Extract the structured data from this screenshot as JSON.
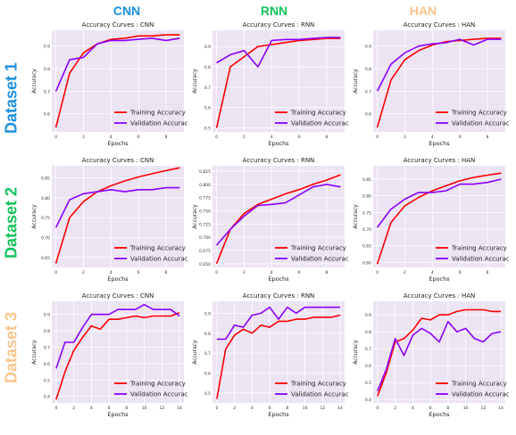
{
  "colors": {
    "plot_bg": "#ece3f3",
    "grid": "#ffffff",
    "training": "#ff0000",
    "validation": "#8a00ff",
    "cnn_header": "#1a8fe0",
    "rnn_header": "#13c25a",
    "han_header": "#f8c48c",
    "dataset1": "#1a8fe0",
    "dataset2": "#13c25a",
    "dataset3": "#f8c48c"
  },
  "columns": [
    {
      "label": "CNN",
      "color": "#1a8fe0"
    },
    {
      "label": "RNN",
      "color": "#13c25a"
    },
    {
      "label": "HAN",
      "color": "#f8c48c"
    }
  ],
  "rows": [
    {
      "label": "Dataset 1",
      "color": "#1a8fe0"
    },
    {
      "label": "Dataset 2",
      "color": "#13c25a"
    },
    {
      "label": "Dataset 3",
      "color": "#f8c48c"
    }
  ],
  "chart_data": [
    {
      "type": "line",
      "title": "Accuracy Curves : CNN",
      "xlabel": "Epochs",
      "ylabel": "Accuracy",
      "grid": true,
      "legend": "bottom-right",
      "xlim": [
        -0.3,
        9.3
      ],
      "xticks": [
        0,
        2,
        4,
        6,
        8
      ],
      "ylim": [
        0.52,
        0.97
      ],
      "yticks": [
        0.6,
        0.7,
        0.8,
        0.9
      ],
      "ytick_labels": [
        "0.6",
        "0.7",
        "0.8",
        "0.9"
      ],
      "x": [
        0,
        1,
        2,
        3,
        4,
        5,
        6,
        7,
        8,
        9
      ],
      "series": [
        {
          "name": "Training Accuracy",
          "color": "#ff0000",
          "values": [
            0.54,
            0.78,
            0.87,
            0.91,
            0.93,
            0.935,
            0.945,
            0.945,
            0.95,
            0.95
          ]
        },
        {
          "name": "Validation Accuracy",
          "color": "#8a00ff",
          "values": [
            0.7,
            0.84,
            0.85,
            0.91,
            0.925,
            0.925,
            0.93,
            0.935,
            0.925,
            0.935
          ]
        }
      ]
    },
    {
      "type": "line",
      "title": "Accuracy Curves : RNN",
      "xlabel": "Epochs",
      "ylabel": "Accuracy",
      "grid": true,
      "legend": "bottom-right",
      "xlim": [
        -0.3,
        9.3
      ],
      "xticks": [
        0,
        2,
        4,
        6,
        8
      ],
      "ylim": [
        0.48,
        0.98
      ],
      "yticks": [
        0.5,
        0.6,
        0.7,
        0.8,
        0.9
      ],
      "ytick_labels": [
        "0.5",
        "0.6",
        "0.7",
        "0.8",
        "0.9"
      ],
      "x": [
        0,
        1,
        2,
        3,
        4,
        5,
        6,
        7,
        8,
        9
      ],
      "series": [
        {
          "name": "Training Accuracy",
          "color": "#ff0000",
          "values": [
            0.5,
            0.8,
            0.85,
            0.9,
            0.91,
            0.92,
            0.93,
            0.935,
            0.94,
            0.94
          ]
        },
        {
          "name": "Validation Accuracy",
          "color": "#8a00ff",
          "values": [
            0.82,
            0.86,
            0.88,
            0.8,
            0.93,
            0.935,
            0.935,
            0.94,
            0.945,
            0.945
          ]
        }
      ]
    },
    {
      "type": "line",
      "title": "Accuracy Curves : HAN",
      "xlabel": "Epochs",
      "ylabel": "Accuracy",
      "grid": true,
      "legend": "bottom-right",
      "xlim": [
        -0.3,
        9.3
      ],
      "xticks": [
        0,
        2,
        4,
        6,
        8
      ],
      "ylim": [
        0.52,
        0.97
      ],
      "yticks": [
        0.6,
        0.7,
        0.8,
        0.9
      ],
      "ytick_labels": [
        "0.6",
        "0.7",
        "0.8",
        "0.9"
      ],
      "x": [
        0,
        1,
        2,
        3,
        4,
        5,
        6,
        7,
        8,
        9
      ],
      "series": [
        {
          "name": "Training Accuracy",
          "color": "#ff0000",
          "values": [
            0.54,
            0.75,
            0.84,
            0.88,
            0.905,
            0.92,
            0.925,
            0.93,
            0.935,
            0.935
          ]
        },
        {
          "name": "Validation Accuracy",
          "color": "#8a00ff",
          "values": [
            0.7,
            0.82,
            0.87,
            0.9,
            0.91,
            0.915,
            0.93,
            0.905,
            0.93,
            0.93
          ]
        }
      ]
    },
    {
      "type": "line",
      "title": "Accuracy Curves : CNN",
      "xlabel": "Epochs",
      "ylabel": "Accuracy",
      "grid": true,
      "legend": "bottom-right",
      "xlim": [
        -0.3,
        9.3
      ],
      "xticks": [
        0,
        2,
        4,
        6,
        8
      ],
      "ylim": [
        0.625,
        0.88
      ],
      "yticks": [
        0.65,
        0.7,
        0.75,
        0.8,
        0.85
      ],
      "ytick_labels": [
        "0.65",
        "0.70",
        "0.75",
        "0.80",
        "0.85"
      ],
      "x": [
        0,
        1,
        2,
        3,
        4,
        5,
        6,
        7,
        8,
        9
      ],
      "series": [
        {
          "name": "Training Accuracy",
          "color": "#ff0000",
          "values": [
            0.635,
            0.75,
            0.79,
            0.815,
            0.83,
            0.842,
            0.852,
            0.86,
            0.868,
            0.875
          ]
        },
        {
          "name": "Validation Accuracy",
          "color": "#8a00ff",
          "values": [
            0.725,
            0.795,
            0.81,
            0.815,
            0.82,
            0.815,
            0.82,
            0.82,
            0.825,
            0.825
          ]
        }
      ]
    },
    {
      "type": "line",
      "title": "Accuracy Curves : RNN",
      "xlabel": "Epochs",
      "ylabel": "Accuracy",
      "grid": true,
      "legend": "bottom-right",
      "xlim": [
        -0.3,
        9.3
      ],
      "xticks": [
        0,
        2,
        4,
        6,
        8
      ],
      "ylim": [
        0.643,
        0.835
      ],
      "yticks": [
        0.65,
        0.675,
        0.7,
        0.725,
        0.75,
        0.775,
        0.8,
        0.825
      ],
      "ytick_labels": [
        "0.650",
        "0.675",
        "0.700",
        "0.725",
        "0.750",
        "0.775",
        "0.800",
        "0.825"
      ],
      "x": [
        0,
        1,
        2,
        3,
        4,
        5,
        6,
        7,
        8,
        9
      ],
      "series": [
        {
          "name": "Training Accuracy",
          "color": "#ff0000",
          "values": [
            0.65,
            0.715,
            0.745,
            0.762,
            0.772,
            0.782,
            0.79,
            0.8,
            0.808,
            0.818
          ]
        },
        {
          "name": "Validation Accuracy",
          "color": "#8a00ff",
          "values": [
            0.685,
            0.715,
            0.74,
            0.76,
            0.762,
            0.765,
            0.78,
            0.795,
            0.8,
            0.795
          ]
        }
      ]
    },
    {
      "type": "line",
      "title": "Accuracy Curves : HAN",
      "xlabel": "Epochs",
      "ylabel": "Accuracy",
      "grid": true,
      "legend": "bottom-right",
      "xlim": [
        -0.3,
        9.3
      ],
      "xticks": [
        0,
        2,
        4,
        6,
        8
      ],
      "ylim": [
        0.585,
        0.89
      ],
      "yticks": [
        0.6,
        0.65,
        0.7,
        0.75,
        0.8,
        0.85
      ],
      "ytick_labels": [
        "0.60",
        "0.65",
        "0.70",
        "0.75",
        "0.80",
        "0.85"
      ],
      "x": [
        0,
        1,
        2,
        3,
        4,
        5,
        6,
        7,
        8,
        9
      ],
      "series": [
        {
          "name": "Training Accuracy",
          "color": "#ff0000",
          "values": [
            0.595,
            0.72,
            0.77,
            0.795,
            0.815,
            0.83,
            0.845,
            0.855,
            0.862,
            0.868
          ]
        },
        {
          "name": "Validation Accuracy",
          "color": "#8a00ff",
          "values": [
            0.705,
            0.76,
            0.79,
            0.81,
            0.81,
            0.815,
            0.835,
            0.835,
            0.84,
            0.85
          ]
        }
      ]
    },
    {
      "type": "line",
      "title": "Accuracy Curves : CNN",
      "xlabel": "Epochs",
      "ylabel": "Accuracy",
      "grid": true,
      "legend": "bottom-right",
      "xlim": [
        -0.5,
        14.5
      ],
      "xticks": [
        0,
        2,
        4,
        6,
        8,
        10,
        12,
        14
      ],
      "ylim": [
        0.36,
        0.98
      ],
      "yticks": [
        0.4,
        0.5,
        0.6,
        0.7,
        0.8,
        0.9
      ],
      "ytick_labels": [
        "0.4",
        "0.5",
        "0.6",
        "0.7",
        "0.8",
        "0.9"
      ],
      "x": [
        0,
        1,
        2,
        3,
        4,
        5,
        6,
        7,
        8,
        9,
        10,
        11,
        12,
        13,
        14
      ],
      "series": [
        {
          "name": "Training Accuracy",
          "color": "#ff0000",
          "values": [
            0.38,
            0.55,
            0.68,
            0.76,
            0.83,
            0.81,
            0.87,
            0.87,
            0.88,
            0.89,
            0.88,
            0.89,
            0.89,
            0.89,
            0.91
          ]
        },
        {
          "name": "Validation Accuracy",
          "color": "#8a00ff",
          "values": [
            0.57,
            0.73,
            0.73,
            0.82,
            0.9,
            0.9,
            0.9,
            0.93,
            0.93,
            0.93,
            0.96,
            0.93,
            0.93,
            0.93,
            0.89
          ]
        }
      ]
    },
    {
      "type": "line",
      "title": "Accuracy Curves : RNN",
      "xlabel": "Epochs",
      "ylabel": "Accuracy",
      "grid": true,
      "legend": "bottom-right",
      "xlim": [
        -0.5,
        14.5
      ],
      "xticks": [
        0,
        2,
        4,
        6,
        8,
        10,
        12,
        14
      ],
      "ylim": [
        0.45,
        0.96
      ],
      "yticks": [
        0.5,
        0.6,
        0.7,
        0.8,
        0.9
      ],
      "ytick_labels": [
        "0.5",
        "0.6",
        "0.7",
        "0.8",
        "0.9"
      ],
      "x": [
        0,
        1,
        2,
        3,
        4,
        5,
        6,
        7,
        8,
        9,
        10,
        11,
        12,
        13,
        14
      ],
      "series": [
        {
          "name": "Training Accuracy",
          "color": "#ff0000",
          "values": [
            0.47,
            0.72,
            0.79,
            0.82,
            0.8,
            0.84,
            0.83,
            0.86,
            0.86,
            0.87,
            0.87,
            0.88,
            0.88,
            0.88,
            0.89
          ]
        },
        {
          "name": "Validation Accuracy",
          "color": "#8a00ff",
          "values": [
            0.77,
            0.77,
            0.84,
            0.83,
            0.89,
            0.9,
            0.93,
            0.87,
            0.93,
            0.9,
            0.93,
            0.93,
            0.93,
            0.93,
            0.93
          ]
        }
      ]
    },
    {
      "type": "line",
      "title": "Accuracy Curves : HAN",
      "xlabel": "Epochs",
      "ylabel": "Accuracy",
      "grid": true,
      "legend": "bottom-right",
      "xlim": [
        -0.5,
        14.5
      ],
      "xticks": [
        0,
        2,
        4,
        6,
        8,
        10,
        12,
        14
      ],
      "ylim": [
        0.38,
        0.98
      ],
      "yticks": [
        0.4,
        0.5,
        0.6,
        0.7,
        0.8,
        0.9
      ],
      "ytick_labels": [
        "0.4",
        "0.5",
        "0.6",
        "0.7",
        "0.8",
        "0.9"
      ],
      "x": [
        0,
        1,
        2,
        3,
        4,
        5,
        6,
        7,
        8,
        9,
        10,
        11,
        12,
        13,
        14
      ],
      "series": [
        {
          "name": "Training Accuracy",
          "color": "#ff0000",
          "values": [
            0.42,
            0.56,
            0.74,
            0.76,
            0.81,
            0.88,
            0.87,
            0.9,
            0.9,
            0.92,
            0.93,
            0.93,
            0.93,
            0.92,
            0.92
          ]
        },
        {
          "name": "Validation Accuracy",
          "color": "#8a00ff",
          "values": [
            0.45,
            0.58,
            0.76,
            0.66,
            0.78,
            0.82,
            0.79,
            0.74,
            0.86,
            0.8,
            0.82,
            0.76,
            0.74,
            0.79,
            0.8
          ]
        }
      ]
    }
  ]
}
